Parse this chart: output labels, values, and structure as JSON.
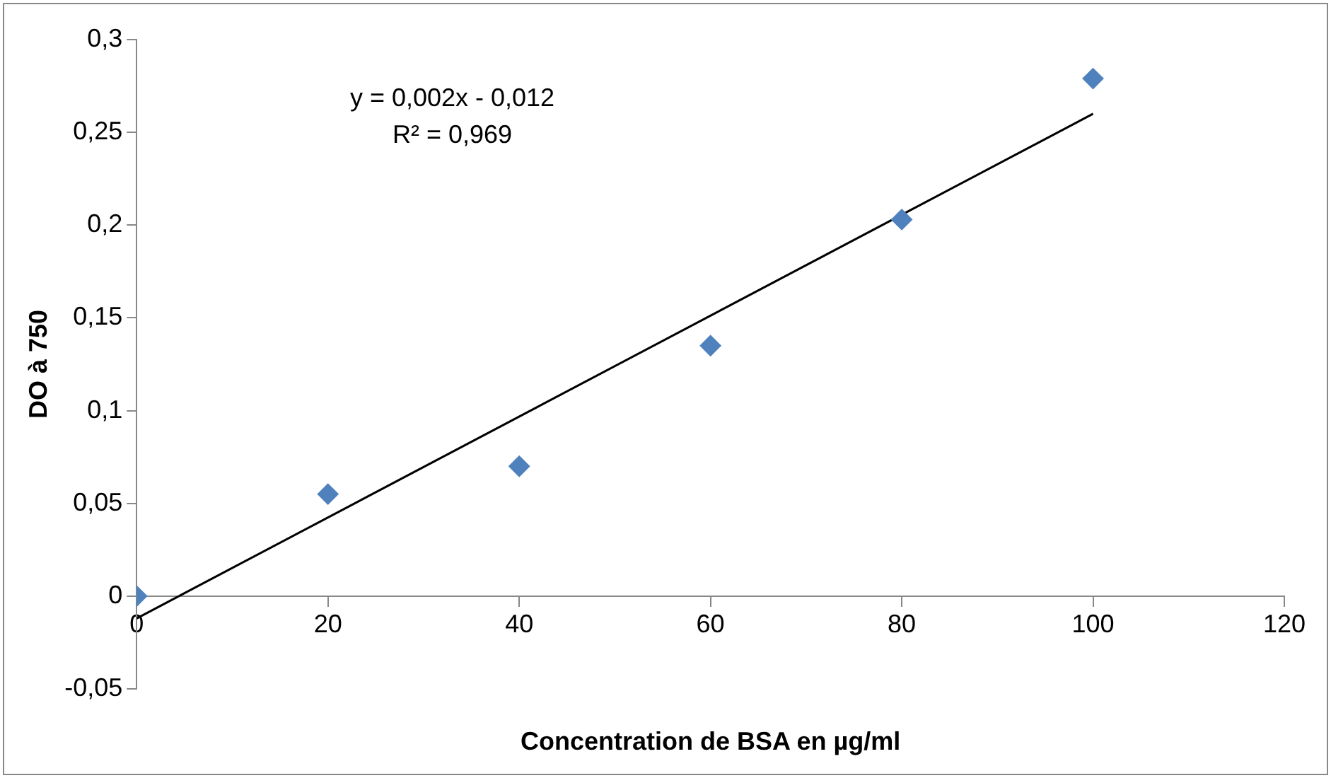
{
  "chart_data": {
    "type": "scatter",
    "xlabel": "Concentration de BSA en µg/ml",
    "ylabel": "DO à 750",
    "x": [
      0,
      20,
      40,
      60,
      80,
      100
    ],
    "series": [
      {
        "color": "#4f81bd",
        "marker": "diamond",
        "values": [
          0,
          0.055,
          0.07,
          0.135,
          0.203,
          0.279
        ]
      },
      {
        "type": "line",
        "color": "#000000",
        "marker": "none",
        "line_style": "solid",
        "x": [
          0,
          100
        ],
        "values": [
          -0.012,
          0.26
        ]
      }
    ],
    "xlim": [
      0,
      120
    ],
    "xticks": [
      0,
      20,
      40,
      60,
      80,
      100,
      120
    ],
    "ylim": [
      -0.05,
      0.3
    ],
    "yticks": [
      {
        "value": -0.05,
        "label": "-0,05"
      },
      {
        "value": 0,
        "label": "0"
      },
      {
        "value": 0.05,
        "label": "0,05"
      },
      {
        "value": 0.1,
        "label": "0,1"
      },
      {
        "value": 0.15,
        "label": "0,15"
      },
      {
        "value": 0.2,
        "label": "0,2"
      },
      {
        "value": 0.25,
        "label": "0,25"
      },
      {
        "value": 0.3,
        "label": "0,3"
      }
    ],
    "annotations": [
      "y = 0,002x - 0,012",
      "R² = 0,969"
    ],
    "grid": false,
    "legend": false
  }
}
